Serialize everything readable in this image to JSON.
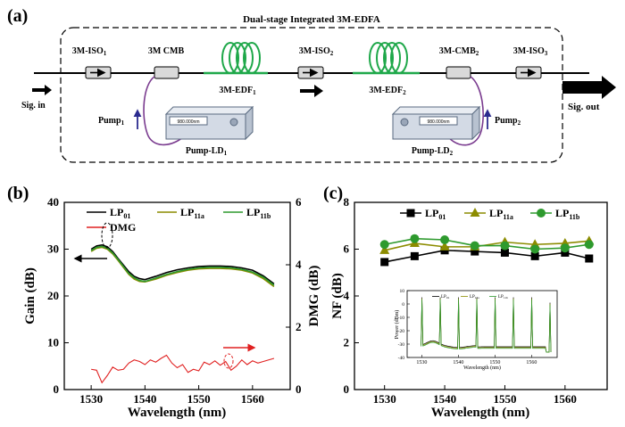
{
  "panel_a": {
    "label": "(a)",
    "title": "Dual-stage Integrated 3M-EDFA",
    "iso1": "3M-ISO",
    "iso1_sub": "1",
    "cmb1": "3M CMB",
    "edf1": "3M-EDF",
    "edf1_sub": "1",
    "iso2": "3M-ISO",
    "iso2_sub": "2",
    "edf2": "3M-EDF",
    "edf2_sub": "2",
    "cmb2": "3M-CMB",
    "cmb2_sub": "2",
    "iso3": "3M-ISO",
    "iso3_sub": "3",
    "sig_in": "Sig. in",
    "sig_out": "Sig. out",
    "pump1": "Pump",
    "pump1_sub": "1",
    "pump2": "Pump",
    "pump2_sub": "2",
    "ld1": "Pump-LD",
    "ld1_sub": "1",
    "ld2": "Pump-LD",
    "ld2_sub": "2",
    "ld_display": "980.000nm",
    "colors": {
      "edf": "#1fa84a",
      "pump_fiber": "#7a3b8f",
      "arrow_pump": "#2b2b8f"
    }
  },
  "chart_data": [
    {
      "panel": "(b)",
      "type": "line",
      "xlabel": "Wavelength (nm)",
      "ylabel": "Gain (dB)",
      "y2label": "DMG (dB)",
      "xlim": [
        1525,
        1567
      ],
      "ylim": [
        0,
        40
      ],
      "y2lim": [
        0,
        6
      ],
      "xticks": [
        1530,
        1540,
        1550,
        1560
      ],
      "yticks": [
        0,
        10,
        20,
        30,
        40
      ],
      "y2ticks": [
        0,
        2,
        4,
        6
      ],
      "legend": [
        "LP01",
        "LP11a",
        "LP11b",
        "DMG"
      ],
      "legend_parts": [
        {
          "main": "LP",
          "sub": "01"
        },
        {
          "main": "LP",
          "sub": "11a"
        },
        {
          "main": "LP",
          "sub": "11b"
        },
        {
          "main": "DMG",
          "sub": ""
        }
      ],
      "x": [
        1530,
        1531,
        1532,
        1533,
        1534,
        1535,
        1536,
        1537,
        1538,
        1539,
        1540,
        1542,
        1544,
        1546,
        1548,
        1550,
        1552,
        1554,
        1556,
        1558,
        1560,
        1562,
        1564
      ],
      "series": [
        {
          "name": "LP01",
          "color": "#000000",
          "values": [
            30.0,
            30.7,
            30.9,
            30.5,
            29.5,
            28.0,
            26.6,
            25.2,
            24.2,
            23.7,
            23.5,
            24.2,
            25.0,
            25.6,
            26.0,
            26.3,
            26.4,
            26.4,
            26.3,
            26.0,
            25.5,
            24.3,
            22.6
          ]
        },
        {
          "name": "LP11a",
          "color": "#8c8c00",
          "values": [
            29.5,
            30.2,
            30.4,
            30.0,
            29.0,
            27.6,
            26.1,
            24.6,
            23.6,
            23.1,
            23.0,
            23.6,
            24.4,
            25.0,
            25.5,
            25.8,
            25.9,
            25.9,
            25.8,
            25.5,
            24.9,
            23.7,
            22.0
          ]
        },
        {
          "name": "LP11b",
          "color": "#2e9a2e",
          "values": [
            29.7,
            30.4,
            30.6,
            30.2,
            29.2,
            27.8,
            26.3,
            24.8,
            23.9,
            23.3,
            23.1,
            23.8,
            24.6,
            25.2,
            25.7,
            26.0,
            26.1,
            26.1,
            26.0,
            25.7,
            25.1,
            24.0,
            22.3
          ]
        }
      ],
      "dmg": {
        "name": "DMG",
        "color": "#e02020",
        "x": [
          1530,
          1531,
          1532,
          1533,
          1534,
          1535,
          1536,
          1537,
          1538,
          1539,
          1540,
          1541,
          1542,
          1543,
          1544,
          1545,
          1546,
          1547,
          1548,
          1549,
          1550,
          1551,
          1552,
          1553,
          1554,
          1555,
          1556,
          1557,
          1558,
          1559,
          1560,
          1561,
          1562,
          1563,
          1564
        ],
        "values": [
          0.65,
          0.62,
          0.22,
          0.45,
          0.72,
          0.62,
          0.65,
          0.85,
          0.95,
          0.9,
          0.8,
          0.95,
          0.88,
          1.0,
          1.1,
          0.85,
          0.7,
          0.8,
          0.55,
          0.65,
          0.6,
          0.88,
          0.8,
          0.92,
          0.78,
          0.9,
          0.62,
          0.75,
          0.95,
          0.8,
          0.92,
          0.85,
          0.9,
          0.95,
          1.0
        ]
      }
    },
    {
      "panel": "(c)",
      "type": "line",
      "xlabel": "Wavelength (nm)",
      "ylabel": "NF (dB)",
      "xlim": [
        1525,
        1567
      ],
      "ylim": [
        0,
        8
      ],
      "xticks": [
        1530,
        1540,
        1550,
        1560
      ],
      "yticks": [
        0,
        2,
        4,
        6,
        8
      ],
      "legend": [
        "LP01",
        "LP11a",
        "LP11b"
      ],
      "legend_parts": [
        {
          "main": "LP",
          "sub": "01"
        },
        {
          "main": "LP",
          "sub": "11a"
        },
        {
          "main": "LP",
          "sub": "11b"
        }
      ],
      "x": [
        1530,
        1535,
        1540,
        1545,
        1550,
        1555,
        1560,
        1564
      ],
      "series": [
        {
          "name": "LP01",
          "color": "#000000",
          "marker": "square",
          "values": [
            5.45,
            5.7,
            5.95,
            5.9,
            5.85,
            5.7,
            5.85,
            5.6
          ]
        },
        {
          "name": "LP11a",
          "color": "#8c8c00",
          "marker": "triangle",
          "values": [
            5.95,
            6.25,
            6.1,
            6.1,
            6.3,
            6.2,
            6.25,
            6.35
          ]
        },
        {
          "name": "LP11b",
          "color": "#2e9a2e",
          "marker": "circle",
          "values": [
            6.2,
            6.45,
            6.4,
            6.15,
            6.15,
            6.0,
            6.05,
            6.2
          ]
        }
      ],
      "inset": {
        "type": "line",
        "xlabel": "Wavelength (nm)",
        "ylabel": "Power (dBm)",
        "xlim": [
          1526,
          1567
        ],
        "ylim": [
          -40,
          10
        ],
        "xticks": [
          1530,
          1540,
          1550,
          1560
        ],
        "yticks": [
          10,
          0,
          -10,
          -20,
          -30,
          -40
        ],
        "legend": [
          "LP01",
          "LP11a",
          "LP11b"
        ],
        "peaks": [
          1530,
          1535,
          1540,
          1545,
          1550,
          1555,
          1560,
          1565
        ]
      }
    }
  ]
}
